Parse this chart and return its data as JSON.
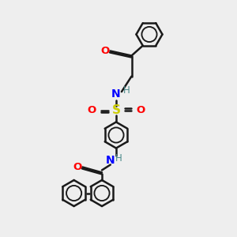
{
  "background_color": "#eeeeee",
  "line_color": "#1a1a1a",
  "N_color": "#0000ff",
  "O_color": "#ff0000",
  "S_color": "#cccc00",
  "H_color": "#4a8a8a",
  "lw": 1.8,
  "hex_r": 0.55,
  "xlim": [
    0,
    10
  ],
  "ylim": [
    0,
    10
  ]
}
